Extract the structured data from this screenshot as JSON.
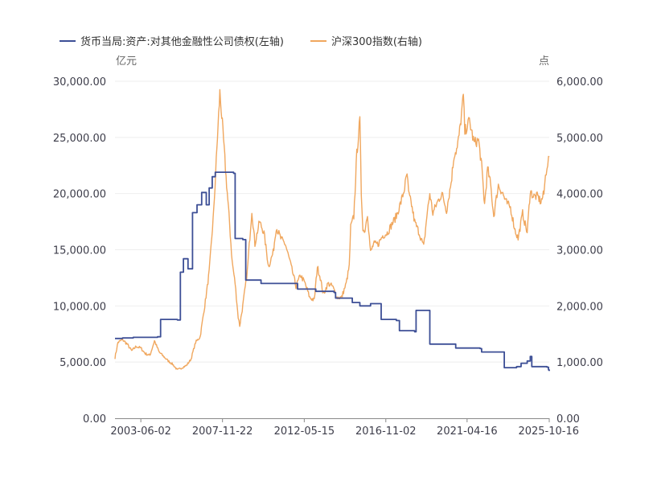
{
  "chart_data": {
    "type": "line",
    "legend_position": "top-left",
    "grid": true,
    "left_axis": {
      "unit": "亿元",
      "range": [
        0,
        30000
      ],
      "ticks": [
        0,
        5000,
        10000,
        15000,
        20000,
        25000,
        30000
      ],
      "tick_labels": [
        "0.00",
        "5,000.00",
        "10,000.00",
        "15,000.00",
        "20,000.00",
        "25,000.00",
        "30,000.00"
      ]
    },
    "right_axis": {
      "unit": "点",
      "range": [
        0,
        6000
      ],
      "ticks": [
        0,
        1000,
        2000,
        3000,
        4000,
        5000,
        6000
      ],
      "tick_labels": [
        "0.00",
        "1,000.00",
        "2,000.00",
        "3,000.00",
        "4,000.00",
        "5,000.00",
        "6,000.00"
      ]
    },
    "x_axis": {
      "range": [
        "2002-01-01",
        "2025-10-16"
      ],
      "tick_labels": [
        "2003-06-02",
        "2007-11-22",
        "2012-05-15",
        "2016-11-02",
        "2021-04-16",
        "2025-10-16"
      ]
    },
    "series": [
      {
        "name": "货币当局:资产:对其他金融性公司债权(左轴)",
        "axis": "left",
        "color": "#3d4f96",
        "step": true,
        "points": [
          [
            "2002-01-01",
            7100
          ],
          [
            "2002-06-01",
            7150
          ],
          [
            "2003-01-01",
            7200
          ],
          [
            "2004-05-01",
            7250
          ],
          [
            "2004-07-01",
            8800
          ],
          [
            "2005-06-01",
            8750
          ],
          [
            "2005-08-01",
            13000
          ],
          [
            "2005-10-01",
            14200
          ],
          [
            "2006-01-01",
            13300
          ],
          [
            "2006-04-01",
            18300
          ],
          [
            "2006-07-01",
            19000
          ],
          [
            "2006-10-01",
            20100
          ],
          [
            "2007-01-01",
            19000
          ],
          [
            "2007-03-01",
            20500
          ],
          [
            "2007-05-01",
            21500
          ],
          [
            "2007-07-01",
            21900
          ],
          [
            "2008-07-01",
            21800
          ],
          [
            "2008-08-01",
            16000
          ],
          [
            "2009-01-01",
            15900
          ],
          [
            "2009-03-01",
            12300
          ],
          [
            "2010-01-01",
            12000
          ],
          [
            "2012-01-01",
            11500
          ],
          [
            "2013-01-01",
            11300
          ],
          [
            "2014-01-01",
            11200
          ],
          [
            "2014-02-01",
            10700
          ],
          [
            "2015-01-01",
            10300
          ],
          [
            "2015-06-01",
            10000
          ],
          [
            "2016-01-01",
            10200
          ],
          [
            "2016-08-01",
            8800
          ],
          [
            "2017-06-01",
            8700
          ],
          [
            "2017-08-01",
            7800
          ],
          [
            "2018-06-01",
            7700
          ],
          [
            "2018-07-01",
            9600
          ],
          [
            "2019-03-01",
            9600
          ],
          [
            "2019-04-01",
            6600
          ],
          [
            "2020-08-01",
            6600
          ],
          [
            "2020-09-01",
            6250
          ],
          [
            "2022-01-01",
            6200
          ],
          [
            "2022-02-01",
            5900
          ],
          [
            "2023-04-01",
            5900
          ],
          [
            "2023-05-01",
            4500
          ],
          [
            "2024-01-01",
            4600
          ],
          [
            "2024-04-01",
            4900
          ],
          [
            "2024-08-01",
            5100
          ],
          [
            "2024-10-01",
            5500
          ],
          [
            "2024-11-01",
            4600
          ],
          [
            "2025-02-01",
            4600
          ],
          [
            "2025-09-01",
            4550
          ],
          [
            "2025-10-01",
            4300
          ],
          [
            "2025-10-16",
            4200
          ]
        ]
      },
      {
        "name": "沪深300指数(右轴)",
        "axis": "right",
        "color": "#f0a75e",
        "step": false,
        "points": [
          [
            "2002-01-01",
            1080
          ],
          [
            "2002-03-01",
            1350
          ],
          [
            "2002-06-01",
            1400
          ],
          [
            "2002-09-01",
            1320
          ],
          [
            "2002-12-01",
            1200
          ],
          [
            "2003-03-01",
            1280
          ],
          [
            "2003-06-01",
            1250
          ],
          [
            "2003-09-01",
            1150
          ],
          [
            "2003-12-01",
            1120
          ],
          [
            "2004-03-01",
            1380
          ],
          [
            "2004-06-01",
            1180
          ],
          [
            "2004-09-01",
            1100
          ],
          [
            "2004-12-01",
            1020
          ],
          [
            "2005-03-01",
            960
          ],
          [
            "2005-06-01",
            860
          ],
          [
            "2005-09-01",
            900
          ],
          [
            "2005-12-01",
            940
          ],
          [
            "2006-03-01",
            1050
          ],
          [
            "2006-06-01",
            1350
          ],
          [
            "2006-09-01",
            1450
          ],
          [
            "2006-12-01",
            2000
          ],
          [
            "2007-03-01",
            2600
          ],
          [
            "2007-06-01",
            3700
          ],
          [
            "2007-08-01",
            4800
          ],
          [
            "2007-10-01",
            5800
          ],
          [
            "2007-12-01",
            5100
          ],
          [
            "2008-02-01",
            4300
          ],
          [
            "2008-04-01",
            3600
          ],
          [
            "2008-06-01",
            2800
          ],
          [
            "2008-08-01",
            2400
          ],
          [
            "2008-10-01",
            1800
          ],
          [
            "2008-11-01",
            1650
          ],
          [
            "2009-01-01",
            2000
          ],
          [
            "2009-04-01",
            2600
          ],
          [
            "2009-07-01",
            3700
          ],
          [
            "2009-09-01",
            3100
          ],
          [
            "2009-12-01",
            3500
          ],
          [
            "2010-03-01",
            3300
          ],
          [
            "2010-06-01",
            2700
          ],
          [
            "2010-09-01",
            2950
          ],
          [
            "2010-11-01",
            3400
          ],
          [
            "2011-02-01",
            3200
          ],
          [
            "2011-05-01",
            3100
          ],
          [
            "2011-08-01",
            2800
          ],
          [
            "2011-12-01",
            2350
          ],
          [
            "2012-03-01",
            2550
          ],
          [
            "2012-06-01",
            2400
          ],
          [
            "2012-09-01",
            2150
          ],
          [
            "2012-12-01",
            2100
          ],
          [
            "2013-02-01",
            2700
          ],
          [
            "2013-04-01",
            2500
          ],
          [
            "2013-06-01",
            2200
          ],
          [
            "2013-09-01",
            2400
          ],
          [
            "2013-12-01",
            2350
          ],
          [
            "2014-03-01",
            2150
          ],
          [
            "2014-06-01",
            2150
          ],
          [
            "2014-09-01",
            2400
          ],
          [
            "2014-11-01",
            2700
          ],
          [
            "2014-12-01",
            3400
          ],
          [
            "2015-02-01",
            3600
          ],
          [
            "2015-04-01",
            4700
          ],
          [
            "2015-06-01",
            5300
          ],
          [
            "2015-07-01",
            4000
          ],
          [
            "2015-08-01",
            3400
          ],
          [
            "2015-09-01",
            3300
          ],
          [
            "2015-11-01",
            3650
          ],
          [
            "2016-01-01",
            2950
          ],
          [
            "2016-03-01",
            3100
          ],
          [
            "2016-06-01",
            3100
          ],
          [
            "2016-09-01",
            3250
          ],
          [
            "2016-12-01",
            3300
          ],
          [
            "2017-03-01",
            3450
          ],
          [
            "2017-06-01",
            3600
          ],
          [
            "2017-09-01",
            3850
          ],
          [
            "2017-11-01",
            4050
          ],
          [
            "2018-01-01",
            4350
          ],
          [
            "2018-02-01",
            4000
          ],
          [
            "2018-04-01",
            3800
          ],
          [
            "2018-06-01",
            3500
          ],
          [
            "2018-09-01",
            3300
          ],
          [
            "2018-12-01",
            3050
          ],
          [
            "2019-02-01",
            3600
          ],
          [
            "2019-04-01",
            4000
          ],
          [
            "2019-06-01",
            3650
          ],
          [
            "2019-09-01",
            3850
          ],
          [
            "2019-12-01",
            4000
          ],
          [
            "2020-03-01",
            3700
          ],
          [
            "2020-06-01",
            4200
          ],
          [
            "2020-08-01",
            4700
          ],
          [
            "2020-10-01",
            4800
          ],
          [
            "2020-12-01",
            5200
          ],
          [
            "2021-02-01",
            5750
          ],
          [
            "2021-03-01",
            5100
          ],
          [
            "2021-06-01",
            5300
          ],
          [
            "2021-09-01",
            4900
          ],
          [
            "2021-12-01",
            4950
          ],
          [
            "2022-02-01",
            4500
          ],
          [
            "2022-04-01",
            3800
          ],
          [
            "2022-06-01",
            4450
          ],
          [
            "2022-08-01",
            4150
          ],
          [
            "2022-10-01",
            3600
          ],
          [
            "2023-01-01",
            4150
          ],
          [
            "2023-04-01",
            4000
          ],
          [
            "2023-06-01",
            3850
          ],
          [
            "2023-09-01",
            3750
          ],
          [
            "2023-12-01",
            3350
          ],
          [
            "2024-02-01",
            3200
          ],
          [
            "2024-05-01",
            3650
          ],
          [
            "2024-08-01",
            3300
          ],
          [
            "2024-10-01",
            4050
          ],
          [
            "2024-12-01",
            3950
          ],
          [
            "2025-03-01",
            3950
          ],
          [
            "2025-05-01",
            3850
          ],
          [
            "2025-07-01",
            4000
          ],
          [
            "2025-08-01",
            4300
          ],
          [
            "2025-09-01",
            4500
          ],
          [
            "2025-10-16",
            4650
          ]
        ]
      }
    ]
  }
}
